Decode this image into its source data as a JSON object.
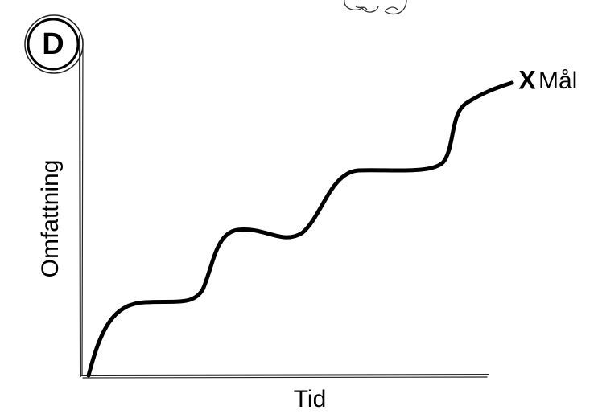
{
  "badge": {
    "label": "D"
  },
  "y_axis": {
    "label": "Omfattning"
  },
  "x_axis": {
    "label": "Tid"
  },
  "goal": {
    "marker": "X",
    "label": "Mål"
  }
}
